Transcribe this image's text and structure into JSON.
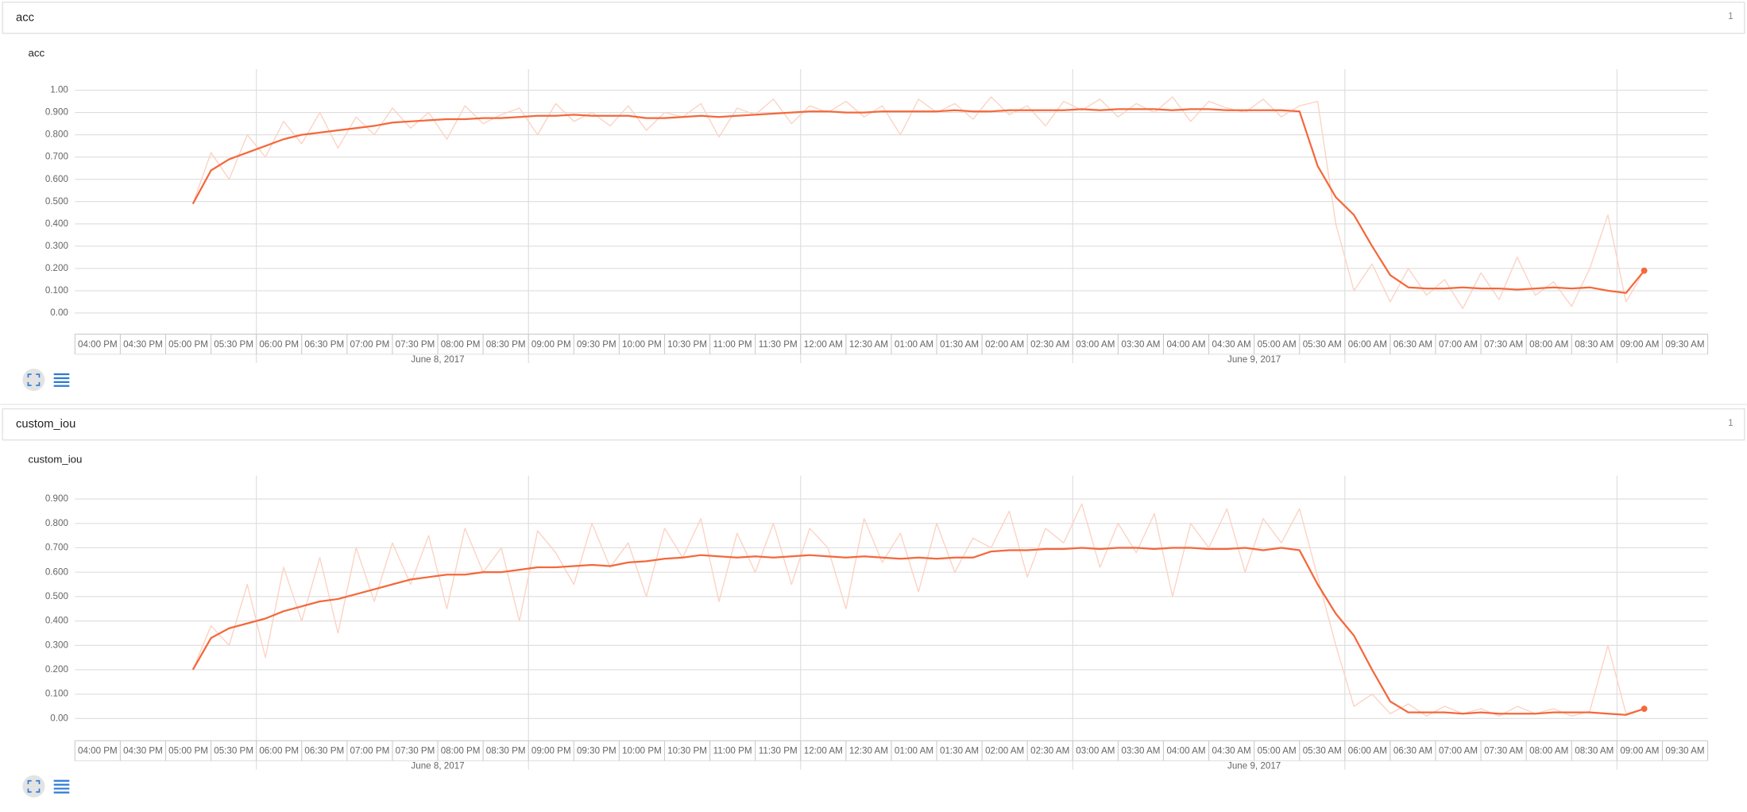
{
  "sections": [
    {
      "title": "acc",
      "count": 1
    },
    {
      "title": "custom_iou",
      "count": 1
    }
  ],
  "chart_data": [
    {
      "type": "line",
      "title": "acc",
      "x": [
        17.3,
        17.5,
        17.7,
        17.9,
        18.1,
        18.3,
        18.5,
        18.7,
        18.9,
        19.1,
        19.3,
        19.5,
        19.7,
        19.9,
        20.1,
        20.3,
        20.5,
        20.7,
        20.9,
        21.1,
        21.3,
        21.5,
        21.7,
        21.9,
        22.1,
        22.3,
        22.5,
        22.7,
        22.9,
        23.1,
        23.3,
        23.5,
        23.7,
        23.9,
        24.1,
        24.3,
        24.5,
        24.7,
        24.9,
        25.1,
        25.3,
        25.5,
        25.7,
        25.9,
        26.1,
        26.3,
        26.5,
        26.7,
        26.9,
        27.1,
        27.3,
        27.5,
        27.7,
        27.9,
        28.1,
        28.3,
        28.5,
        28.7,
        28.9,
        29.1,
        29.3,
        29.5,
        29.7,
        29.9,
        30.1,
        30.3,
        30.5,
        30.7,
        30.9,
        31.1,
        31.3,
        31.5,
        31.7,
        31.9,
        32.1,
        32.3,
        32.5,
        32.7,
        32.9,
        33.1,
        33.3
      ],
      "series": [
        {
          "color": "#fcd3c4",
          "values": [
            0.49,
            0.72,
            0.6,
            0.8,
            0.7,
            0.86,
            0.76,
            0.9,
            0.74,
            0.88,
            0.8,
            0.92,
            0.83,
            0.9,
            0.78,
            0.93,
            0.85,
            0.89,
            0.92,
            0.8,
            0.94,
            0.86,
            0.9,
            0.84,
            0.93,
            0.82,
            0.9,
            0.88,
            0.94,
            0.79,
            0.92,
            0.89,
            0.96,
            0.85,
            0.93,
            0.9,
            0.95,
            0.88,
            0.93,
            0.8,
            0.96,
            0.9,
            0.94,
            0.87,
            0.97,
            0.89,
            0.93,
            0.84,
            0.95,
            0.91,
            0.96,
            0.88,
            0.94,
            0.9,
            0.97,
            0.86,
            0.95,
            0.92,
            0.9,
            0.96,
            0.88,
            0.93,
            0.95,
            0.4,
            0.1,
            0.22,
            0.05,
            0.2,
            0.08,
            0.15,
            0.02,
            0.18,
            0.06,
            0.25,
            0.08,
            0.14,
            0.03,
            0.2,
            0.44,
            0.05,
            0.19
          ]
        },
        {
          "color": "#f4683b",
          "values": [
            0.49,
            0.64,
            0.69,
            0.72,
            0.75,
            0.78,
            0.8,
            0.81,
            0.82,
            0.83,
            0.84,
            0.855,
            0.86,
            0.865,
            0.87,
            0.87,
            0.875,
            0.875,
            0.88,
            0.885,
            0.885,
            0.89,
            0.885,
            0.885,
            0.885,
            0.875,
            0.875,
            0.88,
            0.885,
            0.88,
            0.885,
            0.89,
            0.895,
            0.9,
            0.905,
            0.905,
            0.9,
            0.9,
            0.905,
            0.905,
            0.905,
            0.905,
            0.91,
            0.905,
            0.905,
            0.91,
            0.91,
            0.91,
            0.91,
            0.915,
            0.91,
            0.915,
            0.915,
            0.915,
            0.91,
            0.915,
            0.915,
            0.91,
            0.91,
            0.91,
            0.91,
            0.905,
            0.66,
            0.52,
            0.44,
            0.3,
            0.17,
            0.115,
            0.11,
            0.11,
            0.115,
            0.11,
            0.11,
            0.105,
            0.11,
            0.115,
            0.11,
            0.115,
            0.1,
            0.09,
            0.19
          ]
        }
      ],
      "xlim": [
        16,
        34
      ],
      "xticks": [
        {
          "value": 16,
          "label": "04:00 PM"
        },
        {
          "value": 16.5,
          "label": "04:30 PM"
        },
        {
          "value": 17,
          "label": "05:00 PM"
        },
        {
          "value": 17.5,
          "label": "05:30 PM"
        },
        {
          "value": 18,
          "label": "06:00 PM"
        },
        {
          "value": 18.5,
          "label": "06:30 PM"
        },
        {
          "value": 19,
          "label": "07:00 PM"
        },
        {
          "value": 19.5,
          "label": "07:30 PM"
        },
        {
          "value": 20,
          "label": "08:00 PM"
        },
        {
          "value": 20.5,
          "label": "08:30 PM"
        },
        {
          "value": 21,
          "label": "09:00 PM"
        },
        {
          "value": 21.5,
          "label": "09:30 PM"
        },
        {
          "value": 22,
          "label": "10:00 PM"
        },
        {
          "value": 22.5,
          "label": "10:30 PM"
        },
        {
          "value": 23,
          "label": "11:00 PM"
        },
        {
          "value": 23.5,
          "label": "11:30 PM"
        },
        {
          "value": 24,
          "label": "12:00 AM"
        },
        {
          "value": 24.5,
          "label": "12:30 AM"
        },
        {
          "value": 25,
          "label": "01:00 AM"
        },
        {
          "value": 25.5,
          "label": "01:30 AM"
        },
        {
          "value": 26,
          "label": "02:00 AM"
        },
        {
          "value": 26.5,
          "label": "02:30 AM"
        },
        {
          "value": 27,
          "label": "03:00 AM"
        },
        {
          "value": 27.5,
          "label": "03:30 AM"
        },
        {
          "value": 28,
          "label": "04:00 AM"
        },
        {
          "value": 28.5,
          "label": "04:30 AM"
        },
        {
          "value": 29,
          "label": "05:00 AM"
        },
        {
          "value": 29.5,
          "label": "05:30 AM"
        },
        {
          "value": 30,
          "label": "06:00 AM"
        },
        {
          "value": 30.5,
          "label": "06:30 AM"
        },
        {
          "value": 31,
          "label": "07:00 AM"
        },
        {
          "value": 31.5,
          "label": "07:30 AM"
        },
        {
          "value": 32,
          "label": "08:00 AM"
        },
        {
          "value": 32.5,
          "label": "08:30 AM"
        },
        {
          "value": 33,
          "label": "09:00 AM"
        },
        {
          "value": 33.5,
          "label": "09:30 AM"
        }
      ],
      "date_labels": [
        {
          "value": 20,
          "label": "June 8, 2017"
        },
        {
          "value": 29,
          "label": "June 9, 2017"
        }
      ],
      "xgrid": [
        18,
        21,
        24,
        27,
        30,
        33
      ],
      "ylim": [
        -0.095,
        1.095
      ],
      "yticks": [
        {
          "value": 0,
          "label": "0.00"
        },
        {
          "value": 0.1,
          "label": "0.100"
        },
        {
          "value": 0.2,
          "label": "0.200"
        },
        {
          "value": 0.3,
          "label": "0.300"
        },
        {
          "value": 0.4,
          "label": "0.400"
        },
        {
          "value": 0.5,
          "label": "0.500"
        },
        {
          "value": 0.6,
          "label": "0.600"
        },
        {
          "value": 0.7,
          "label": "0.700"
        },
        {
          "value": 0.8,
          "label": "0.800"
        },
        {
          "value": 0.9,
          "label": "0.900"
        },
        {
          "value": 1,
          "label": "1.00"
        }
      ],
      "grid": true
    },
    {
      "type": "line",
      "title": "custom_iou",
      "x": [
        17.3,
        17.5,
        17.7,
        17.9,
        18.1,
        18.3,
        18.5,
        18.7,
        18.9,
        19.1,
        19.3,
        19.5,
        19.7,
        19.9,
        20.1,
        20.3,
        20.5,
        20.7,
        20.9,
        21.1,
        21.3,
        21.5,
        21.7,
        21.9,
        22.1,
        22.3,
        22.5,
        22.7,
        22.9,
        23.1,
        23.3,
        23.5,
        23.7,
        23.9,
        24.1,
        24.3,
        24.5,
        24.7,
        24.9,
        25.1,
        25.3,
        25.5,
        25.7,
        25.9,
        26.1,
        26.3,
        26.5,
        26.7,
        26.9,
        27.1,
        27.3,
        27.5,
        27.7,
        27.9,
        28.1,
        28.3,
        28.5,
        28.7,
        28.9,
        29.1,
        29.3,
        29.5,
        29.7,
        29.9,
        30.1,
        30.3,
        30.5,
        30.7,
        30.9,
        31.1,
        31.3,
        31.5,
        31.7,
        31.9,
        32.1,
        32.3,
        32.5,
        32.7,
        32.9,
        33.1,
        33.3
      ],
      "series": [
        {
          "color": "#fcd3c4",
          "values": [
            0.2,
            0.38,
            0.3,
            0.55,
            0.25,
            0.62,
            0.4,
            0.66,
            0.35,
            0.7,
            0.48,
            0.72,
            0.55,
            0.75,
            0.45,
            0.78,
            0.6,
            0.7,
            0.4,
            0.77,
            0.68,
            0.55,
            0.8,
            0.62,
            0.72,
            0.5,
            0.78,
            0.66,
            0.82,
            0.48,
            0.76,
            0.6,
            0.8,
            0.55,
            0.78,
            0.7,
            0.45,
            0.82,
            0.64,
            0.76,
            0.52,
            0.8,
            0.6,
            0.74,
            0.7,
            0.85,
            0.58,
            0.78,
            0.72,
            0.88,
            0.62,
            0.8,
            0.68,
            0.84,
            0.5,
            0.8,
            0.7,
            0.86,
            0.6,
            0.82,
            0.72,
            0.86,
            0.58,
            0.3,
            0.05,
            0.1,
            0.02,
            0.06,
            0.01,
            0.05,
            0.02,
            0.04,
            0.01,
            0.05,
            0.02,
            0.04,
            0.01,
            0.03,
            0.3,
            0.02,
            0.04
          ]
        },
        {
          "color": "#f4683b",
          "values": [
            0.2,
            0.33,
            0.37,
            0.39,
            0.41,
            0.44,
            0.46,
            0.48,
            0.49,
            0.51,
            0.53,
            0.55,
            0.57,
            0.58,
            0.59,
            0.59,
            0.6,
            0.6,
            0.61,
            0.62,
            0.62,
            0.625,
            0.63,
            0.625,
            0.64,
            0.645,
            0.655,
            0.66,
            0.67,
            0.665,
            0.66,
            0.665,
            0.66,
            0.665,
            0.67,
            0.665,
            0.66,
            0.665,
            0.66,
            0.655,
            0.66,
            0.655,
            0.66,
            0.66,
            0.685,
            0.69,
            0.69,
            0.695,
            0.695,
            0.7,
            0.695,
            0.7,
            0.7,
            0.695,
            0.7,
            0.7,
            0.695,
            0.695,
            0.7,
            0.69,
            0.7,
            0.69,
            0.55,
            0.43,
            0.34,
            0.2,
            0.07,
            0.025,
            0.025,
            0.025,
            0.02,
            0.025,
            0.02,
            0.02,
            0.02,
            0.025,
            0.025,
            0.025,
            0.02,
            0.015,
            0.04
          ]
        }
      ],
      "xlim": [
        16,
        34
      ],
      "xticks": [
        {
          "value": 16,
          "label": "04:00 PM"
        },
        {
          "value": 16.5,
          "label": "04:30 PM"
        },
        {
          "value": 17,
          "label": "05:00 PM"
        },
        {
          "value": 17.5,
          "label": "05:30 PM"
        },
        {
          "value": 18,
          "label": "06:00 PM"
        },
        {
          "value": 18.5,
          "label": "06:30 PM"
        },
        {
          "value": 19,
          "label": "07:00 PM"
        },
        {
          "value": 19.5,
          "label": "07:30 PM"
        },
        {
          "value": 20,
          "label": "08:00 PM"
        },
        {
          "value": 20.5,
          "label": "08:30 PM"
        },
        {
          "value": 21,
          "label": "09:00 PM"
        },
        {
          "value": 21.5,
          "label": "09:30 PM"
        },
        {
          "value": 22,
          "label": "10:00 PM"
        },
        {
          "value": 22.5,
          "label": "10:30 PM"
        },
        {
          "value": 23,
          "label": "11:00 PM"
        },
        {
          "value": 23.5,
          "label": "11:30 PM"
        },
        {
          "value": 24,
          "label": "12:00 AM"
        },
        {
          "value": 24.5,
          "label": "12:30 AM"
        },
        {
          "value": 25,
          "label": "01:00 AM"
        },
        {
          "value": 25.5,
          "label": "01:30 AM"
        },
        {
          "value": 26,
          "label": "02:00 AM"
        },
        {
          "value": 26.5,
          "label": "02:30 AM"
        },
        {
          "value": 27,
          "label": "03:00 AM"
        },
        {
          "value": 27.5,
          "label": "03:30 AM"
        },
        {
          "value": 28,
          "label": "04:00 AM"
        },
        {
          "value": 28.5,
          "label": "04:30 AM"
        },
        {
          "value": 29,
          "label": "05:00 AM"
        },
        {
          "value": 29.5,
          "label": "05:30 AM"
        },
        {
          "value": 30,
          "label": "06:00 AM"
        },
        {
          "value": 30.5,
          "label": "06:30 AM"
        },
        {
          "value": 31,
          "label": "07:00 AM"
        },
        {
          "value": 31.5,
          "label": "07:30 AM"
        },
        {
          "value": 32,
          "label": "08:00 AM"
        },
        {
          "value": 32.5,
          "label": "08:30 AM"
        },
        {
          "value": 33,
          "label": "09:00 AM"
        },
        {
          "value": 33.5,
          "label": "09:30 AM"
        }
      ],
      "date_labels": [
        {
          "value": 20,
          "label": "June 8, 2017"
        },
        {
          "value": 29,
          "label": "June 9, 2017"
        }
      ],
      "xgrid": [
        18,
        21,
        24,
        27,
        30,
        33
      ],
      "ylim": [
        -0.091,
        0.996
      ],
      "yticks": [
        {
          "value": 0,
          "label": "0.00"
        },
        {
          "value": 0.1,
          "label": "0.100"
        },
        {
          "value": 0.2,
          "label": "0.200"
        },
        {
          "value": 0.3,
          "label": "0.300"
        },
        {
          "value": 0.4,
          "label": "0.400"
        },
        {
          "value": 0.5,
          "label": "0.500"
        },
        {
          "value": 0.6,
          "label": "0.600"
        },
        {
          "value": 0.7,
          "label": "0.700"
        },
        {
          "value": 0.8,
          "label": "0.800"
        },
        {
          "value": 0.9,
          "label": "0.900"
        }
      ],
      "grid": true
    }
  ]
}
